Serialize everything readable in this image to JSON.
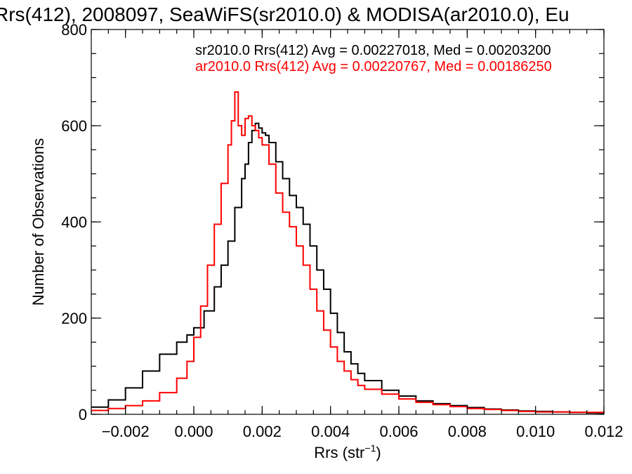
{
  "chart_data": {
    "type": "line",
    "title": "Rrs(412), 2008097, SeaWiFS(sr2010.0) & MODISA(ar2010.0), Eu",
    "xlabel": "Rrs (str",
    "xlabel_sup": "−1",
    "xlabel_close": ")",
    "ylabel": "Number of Observations",
    "xlim": [
      -0.003,
      0.012
    ],
    "ylim": [
      0,
      800
    ],
    "x_ticks": [
      -0.002,
      0.0,
      0.002,
      0.004,
      0.006,
      0.008,
      0.01,
      0.012
    ],
    "x_tick_labels": [
      "−0.002",
      "0.000",
      "0.002",
      "0.004",
      "0.006",
      "0.008",
      "0.010",
      "0.012"
    ],
    "y_ticks": [
      0,
      200,
      400,
      600,
      800
    ],
    "y_tick_labels": [
      "0",
      "200",
      "400",
      "600",
      "800"
    ],
    "grid": false,
    "legend_position": "top-right",
    "colors": {
      "sr2010": "#000000",
      "ar2010": "#ff0000"
    },
    "series": [
      {
        "name": "sr2010.0 Rrs(412) Avg = 0.00227018, Med = 0.00203200",
        "color": "#000000",
        "x": [
          -0.003,
          -0.0025,
          -0.002,
          -0.0015,
          -0.001,
          -0.0005,
          -0.0002,
          0.0,
          0.0003,
          0.0006,
          0.0008,
          0.001,
          0.0012,
          0.0014,
          0.0015,
          0.0016,
          0.0017,
          0.0018,
          0.0019,
          0.002,
          0.0021,
          0.0022,
          0.0024,
          0.0026,
          0.0028,
          0.003,
          0.0032,
          0.0034,
          0.0036,
          0.0038,
          0.004,
          0.0042,
          0.0044,
          0.0046,
          0.0048,
          0.005,
          0.0055,
          0.006,
          0.0065,
          0.007,
          0.0075,
          0.008,
          0.0085,
          0.009,
          0.0095,
          0.01,
          0.0105,
          0.011,
          0.0115,
          0.012
        ],
        "y": [
          15,
          30,
          55,
          90,
          125,
          150,
          165,
          180,
          215,
          265,
          310,
          360,
          430,
          490,
          520,
          565,
          590,
          605,
          595,
          585,
          580,
          565,
          525,
          490,
          455,
          430,
          395,
          350,
          300,
          260,
          210,
          170,
          130,
          105,
          85,
          70,
          50,
          38,
          28,
          22,
          18,
          14,
          11,
          9,
          7,
          6,
          5,
          4,
          3,
          3
        ]
      },
      {
        "name": "ar2010.0 Rrs(412) Avg = 0.00220767, Med = 0.00186250",
        "color": "#ff0000",
        "x": [
          -0.003,
          -0.0025,
          -0.002,
          -0.0015,
          -0.001,
          -0.0005,
          -0.0002,
          0.0,
          0.0002,
          0.0004,
          0.0006,
          0.0008,
          0.001,
          0.0011,
          0.0012,
          0.0013,
          0.0014,
          0.0015,
          0.0016,
          0.0017,
          0.0018,
          0.0019,
          0.002,
          0.0022,
          0.0024,
          0.0026,
          0.0028,
          0.003,
          0.0032,
          0.0034,
          0.0036,
          0.0038,
          0.004,
          0.0042,
          0.0044,
          0.0046,
          0.0048,
          0.005,
          0.0055,
          0.006,
          0.0065,
          0.007,
          0.0075,
          0.008,
          0.0085,
          0.009,
          0.0095,
          0.01,
          0.011,
          0.012
        ],
        "y": [
          8,
          12,
          18,
          28,
          45,
          75,
          110,
          160,
          225,
          310,
          395,
          480,
          560,
          610,
          670,
          600,
          580,
          615,
          620,
          600,
          590,
          575,
          560,
          520,
          460,
          420,
          390,
          350,
          310,
          260,
          215,
          175,
          140,
          110,
          90,
          72,
          60,
          52,
          42,
          32,
          25,
          20,
          16,
          12,
          10,
          8,
          6,
          5,
          4,
          3
        ]
      }
    ]
  }
}
